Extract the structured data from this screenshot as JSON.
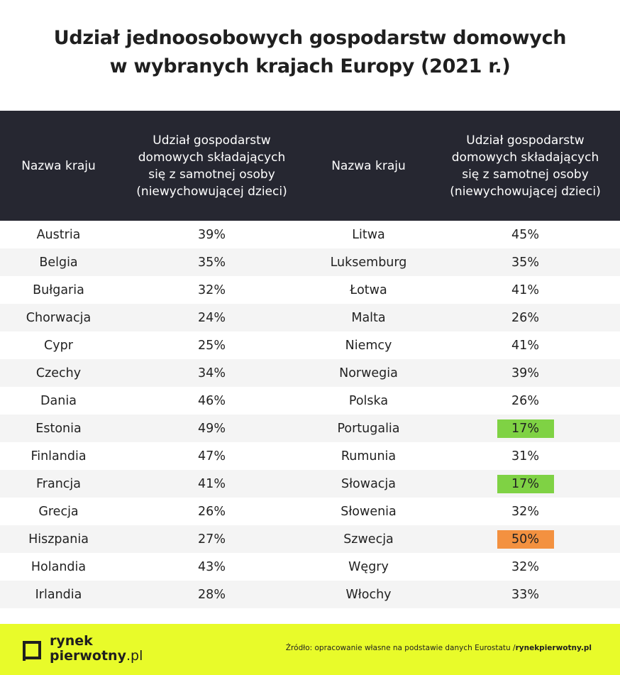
{
  "title": {
    "line1": "Udział jednoosobowych gospodarstw domowych",
    "line2": "w wybranych krajach Europy (2021 r.)"
  },
  "colors": {
    "header_bg": "#262731",
    "footer_bg": "#e8fb2a",
    "highlight_low": "#7fd244",
    "highlight_high": "#f39140"
  },
  "chart_data": {
    "type": "table",
    "title": "Udział jednoosobowych gospodarstw domowych w wybranych krajach Europy (2021 r.)",
    "columns": [
      "Nazwa kraju",
      "Udział gospodarstw domowych składających się z samotnej osoby (niewychowującej dzieci)",
      "Nazwa kraju",
      "Udział gospodarstw domowych składających się z samotnej osoby (niewychowującej dzieci)"
    ],
    "header": {
      "country": "Nazwa kraju",
      "share_l1": "Udział gospodarstw",
      "share_l2": "domowych składających",
      "share_l3": "się z samotnej osoby",
      "share_l4": "(niewychowującej dzieci)"
    },
    "rows": [
      {
        "c1": "Austria",
        "v1": "39%",
        "c2": "Litwa",
        "v2": "45%"
      },
      {
        "c1": "Belgia",
        "v1": "35%",
        "c2": "Luksemburg",
        "v2": "35%"
      },
      {
        "c1": "Bułgaria",
        "v1": "32%",
        "c2": "Łotwa",
        "v2": "41%"
      },
      {
        "c1": "Chorwacja",
        "v1": "24%",
        "c2": "Malta",
        "v2": "26%"
      },
      {
        "c1": "Cypr",
        "v1": "25%",
        "c2": "Niemcy",
        "v2": "41%"
      },
      {
        "c1": "Czechy",
        "v1": "34%",
        "c2": "Norwegia",
        "v2": "39%"
      },
      {
        "c1": "Dania",
        "v1": "46%",
        "c2": "Polska",
        "v2": "26%"
      },
      {
        "c1": "Estonia",
        "v1": "49%",
        "c2": "Portugalia",
        "v2": "17%",
        "h2": "low"
      },
      {
        "c1": "Finlandia",
        "v1": "47%",
        "c2": "Rumunia",
        "v2": "31%"
      },
      {
        "c1": "Francja",
        "v1": "41%",
        "c2": "Słowacja",
        "v2": "17%",
        "h2": "low"
      },
      {
        "c1": "Grecja",
        "v1": "26%",
        "c2": "Słowenia",
        "v2": "32%"
      },
      {
        "c1": "Hiszpania",
        "v1": "27%",
        "c2": "Szwecja",
        "v2": "50%",
        "h2": "high"
      },
      {
        "c1": "Holandia",
        "v1": "43%",
        "c2": "Węgry",
        "v2": "32%"
      },
      {
        "c1": "Irlandia",
        "v1": "28%",
        "c2": "Włochy",
        "v2": "33%"
      }
    ]
  },
  "footer": {
    "logo_line1": "rynek",
    "logo_line2": "pierwotny",
    "logo_suffix": ".pl",
    "source_text": "Źródło: opracowanie własne na podstawie danych Eurostatu /",
    "source_brand": "rynekpierwotny.pl",
    "logo_icon": "square-logo-icon"
  }
}
